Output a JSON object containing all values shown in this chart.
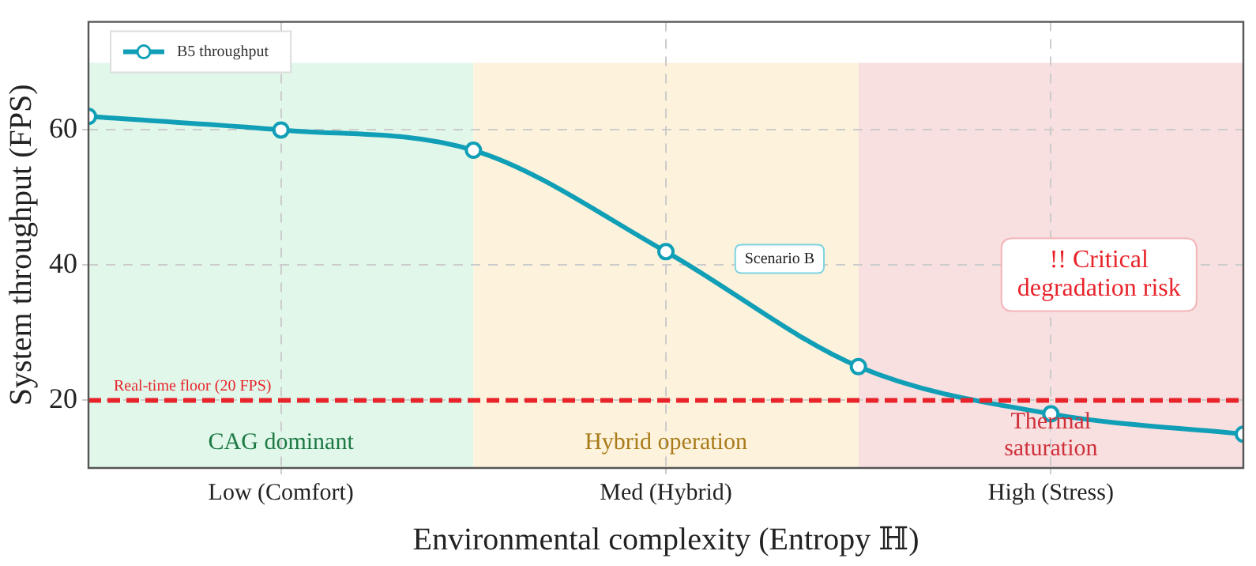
{
  "chart_data": {
    "type": "line",
    "xlabel": "Environmental complexity (Entropy ℍ)",
    "ylabel": "System throughput (FPS)",
    "categories": [
      null,
      "Low (Comfort)",
      null,
      "Med (Hybrid)",
      null,
      "High (Stress)",
      null
    ],
    "series": [
      {
        "name": "B5 throughput",
        "color": "#109fb6",
        "values": [
          62,
          60,
          57,
          42,
          25,
          18,
          15
        ]
      }
    ],
    "ylim": [
      10,
      76
    ],
    "yticks": [
      20,
      40,
      60
    ],
    "grid": true,
    "legend": "top left",
    "marker": "circle",
    "line_style": "solid",
    "ref_lines": [
      {
        "axis": "y",
        "value": 20,
        "label": "Real-time floor (20 FPS)",
        "color": "#e8232a",
        "line_style": "dashed"
      }
    ],
    "annotations": [
      "CAG dominant",
      "Hybrid operation",
      "Thermal saturation",
      "Scenario B",
      "!! Critical degradation risk"
    ]
  }
}
